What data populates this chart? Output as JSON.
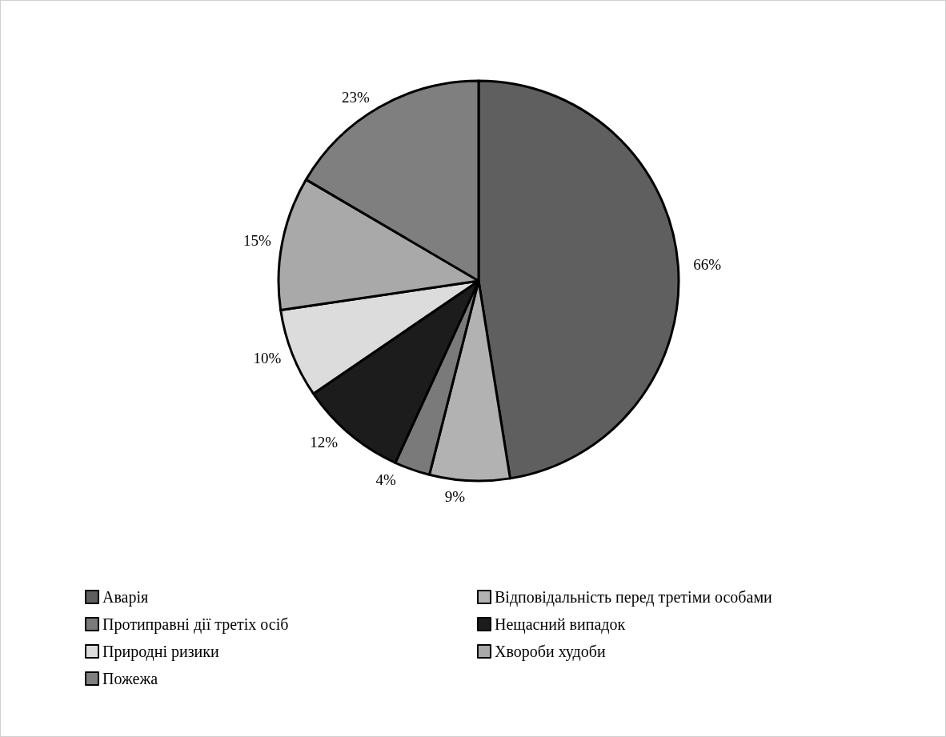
{
  "chart_data": {
    "type": "pie",
    "categories": [
      "Аварія",
      "Відповідальність перед третіми особами",
      "Протиправні дії третіх осіб",
      "Нещасний випадок",
      "Природні ризики",
      "Хвороби худоби",
      "Пожежа"
    ],
    "values": [
      66,
      9,
      4,
      12,
      10,
      15,
      23
    ],
    "value_labels": [
      "66%",
      "9%",
      "4%",
      "12%",
      "10%",
      "15%",
      "23%"
    ],
    "colors": [
      "#5f5f5f",
      "#b2b2b2",
      "#7a7a7a",
      "#1c1c1c",
      "#dcdcdc",
      "#a9a9a9",
      "#7f7f7f"
    ],
    "legend": "bottom"
  }
}
